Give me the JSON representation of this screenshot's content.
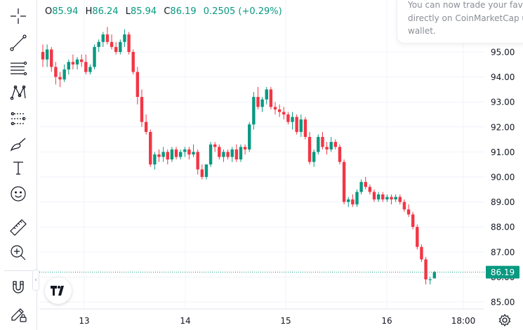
{
  "legend": {
    "open_label": "O",
    "open": "85.94",
    "high_label": "H",
    "high": "86.24",
    "low_label": "L",
    "low": "85.94",
    "close_label": "C",
    "close": "86.19",
    "change": "0.2505 (+0.29%)"
  },
  "tooltip": {
    "line1": "You can now trade your favorite",
    "line2": "directly on CoinMarketCap us",
    "line3": "wallet."
  },
  "toolbar": {
    "icons": [
      "crosshair-icon",
      "trend-line-icon",
      "fib-retracement-icon",
      "pattern-icon",
      "prediction-icon",
      "brush-icon",
      "text-icon",
      "emoji-icon",
      "ruler-icon",
      "zoom-in-icon",
      "magnet-icon",
      "lock-pencil-icon"
    ]
  },
  "colors": {
    "up": "#089981",
    "down": "#f23645",
    "grid": "#f0f3fa",
    "price_tag": "#089981"
  },
  "chart_data": {
    "type": "candlestick",
    "yaxis": {
      "ticks": [
        85.0,
        86.0,
        87.0,
        88.0,
        89.0,
        90.0,
        91.0,
        92.0,
        93.0,
        94.0,
        95.0
      ],
      "range": [
        84.6,
        96.2
      ],
      "position": "right"
    },
    "xaxis": {
      "ticks": [
        "13",
        "14",
        "15",
        "16",
        "18:00"
      ]
    },
    "last_price": "86.19",
    "candles": [
      [
        95.0,
        95.3,
        94.4,
        94.7
      ],
      [
        94.7,
        95.3,
        94.4,
        95.1
      ],
      [
        95.1,
        95.2,
        94.2,
        94.4
      ],
      [
        94.4,
        94.6,
        93.7,
        94.0
      ],
      [
        94.0,
        94.2,
        93.6,
        93.9
      ],
      [
        93.9,
        94.5,
        93.8,
        94.3
      ],
      [
        94.3,
        94.7,
        94.1,
        94.6
      ],
      [
        94.6,
        94.9,
        94.3,
        94.5
      ],
      [
        94.5,
        94.8,
        94.3,
        94.7
      ],
      [
        94.7,
        94.9,
        94.4,
        94.6
      ],
      [
        94.6,
        94.9,
        94.1,
        94.2
      ],
      [
        94.2,
        94.5,
        94.1,
        94.4
      ],
      [
        94.4,
        95.3,
        94.3,
        95.2
      ],
      [
        95.2,
        95.5,
        95.0,
        95.4
      ],
      [
        95.4,
        95.8,
        95.2,
        95.7
      ],
      [
        95.7,
        96.0,
        95.3,
        95.4
      ],
      [
        95.4,
        95.7,
        95.1,
        95.2
      ],
      [
        95.2,
        95.4,
        94.9,
        95.0
      ],
      [
        95.0,
        95.5,
        94.9,
        95.4
      ],
      [
        95.4,
        95.9,
        95.2,
        95.7
      ],
      [
        95.7,
        95.8,
        94.9,
        95.0
      ],
      [
        95.0,
        95.1,
        94.1,
        94.2
      ],
      [
        94.2,
        94.4,
        92.9,
        93.2
      ],
      [
        93.2,
        93.5,
        92.0,
        92.2
      ],
      [
        92.2,
        92.5,
        91.7,
        91.8
      ],
      [
        91.8,
        91.9,
        90.4,
        90.5
      ],
      [
        90.5,
        91.0,
        90.3,
        90.9
      ],
      [
        90.9,
        91.1,
        90.6,
        90.8
      ],
      [
        90.8,
        91.2,
        90.6,
        91.0
      ],
      [
        91.0,
        91.1,
        90.5,
        90.7
      ],
      [
        90.7,
        91.2,
        90.6,
        91.1
      ],
      [
        91.1,
        91.2,
        90.7,
        90.8
      ],
      [
        90.8,
        91.1,
        90.7,
        91.0
      ],
      [
        91.0,
        91.2,
        90.8,
        91.1
      ],
      [
        91.1,
        91.2,
        90.7,
        90.9
      ],
      [
        90.9,
        91.3,
        90.8,
        91.0
      ],
      [
        91.0,
        91.1,
        90.1,
        90.3
      ],
      [
        90.3,
        90.5,
        89.9,
        90.0
      ],
      [
        90.0,
        90.5,
        89.9,
        90.5
      ],
      [
        90.5,
        91.4,
        90.4,
        91.3
      ],
      [
        91.3,
        91.4,
        91.0,
        91.2
      ],
      [
        91.2,
        91.3,
        90.7,
        90.8
      ],
      [
        90.8,
        91.1,
        90.6,
        91.0
      ],
      [
        91.0,
        91.1,
        90.7,
        90.8
      ],
      [
        90.8,
        91.2,
        90.6,
        91.1
      ],
      [
        91.1,
        91.3,
        90.6,
        90.7
      ],
      [
        90.7,
        91.3,
        90.6,
        91.2
      ],
      [
        91.2,
        91.3,
        90.9,
        91.1
      ],
      [
        91.1,
        92.2,
        91.0,
        92.1
      ],
      [
        92.1,
        93.4,
        91.9,
        93.2
      ],
      [
        93.2,
        93.6,
        92.7,
        92.8
      ],
      [
        92.8,
        93.2,
        92.6,
        93.1
      ],
      [
        93.1,
        93.6,
        92.9,
        93.5
      ],
      [
        93.5,
        93.6,
        92.7,
        92.8
      ],
      [
        92.8,
        93.0,
        92.5,
        92.7
      ],
      [
        92.7,
        92.9,
        92.4,
        92.6
      ],
      [
        92.6,
        92.8,
        92.3,
        92.5
      ],
      [
        92.5,
        92.6,
        92.1,
        92.2
      ],
      [
        92.2,
        92.6,
        91.9,
        92.4
      ],
      [
        92.4,
        92.5,
        91.7,
        91.8
      ],
      [
        91.8,
        92.5,
        91.6,
        92.3
      ],
      [
        92.3,
        92.4,
        91.5,
        91.6
      ],
      [
        91.6,
        91.8,
        90.5,
        90.6
      ],
      [
        90.6,
        91.1,
        90.4,
        91.0
      ],
      [
        91.0,
        91.7,
        90.9,
        91.6
      ],
      [
        91.6,
        91.8,
        91.1,
        91.2
      ],
      [
        91.2,
        91.4,
        90.9,
        91.1
      ],
      [
        91.1,
        91.6,
        91.0,
        91.4
      ],
      [
        91.4,
        91.5,
        91.1,
        91.2
      ],
      [
        91.2,
        91.3,
        90.5,
        90.6
      ],
      [
        90.6,
        90.7,
        88.9,
        89.0
      ],
      [
        89.0,
        89.2,
        88.8,
        89.1
      ],
      [
        89.1,
        89.3,
        88.8,
        88.9
      ],
      [
        88.9,
        89.5,
        88.8,
        89.4
      ],
      [
        89.4,
        89.9,
        89.3,
        89.8
      ],
      [
        89.8,
        90.0,
        89.5,
        89.6
      ],
      [
        89.6,
        89.7,
        89.3,
        89.4
      ],
      [
        89.4,
        89.5,
        89.0,
        89.1
      ],
      [
        89.1,
        89.4,
        89.0,
        89.3
      ],
      [
        89.3,
        89.4,
        89.0,
        89.1
      ],
      [
        89.1,
        89.3,
        89.0,
        89.2
      ],
      [
        89.2,
        89.3,
        88.9,
        89.1
      ],
      [
        89.1,
        89.3,
        89.0,
        89.2
      ],
      [
        89.2,
        89.3,
        88.9,
        89.0
      ],
      [
        89.0,
        89.1,
        88.6,
        88.7
      ],
      [
        88.7,
        88.9,
        88.4,
        88.5
      ],
      [
        88.5,
        88.6,
        87.9,
        88.0
      ],
      [
        88.0,
        88.1,
        87.1,
        87.2
      ],
      [
        87.2,
        87.3,
        86.6,
        86.7
      ],
      [
        86.7,
        86.8,
        85.7,
        85.9
      ],
      [
        85.9,
        86.0,
        85.7,
        85.9
      ],
      [
        85.94,
        86.24,
        85.94,
        86.19
      ]
    ]
  }
}
